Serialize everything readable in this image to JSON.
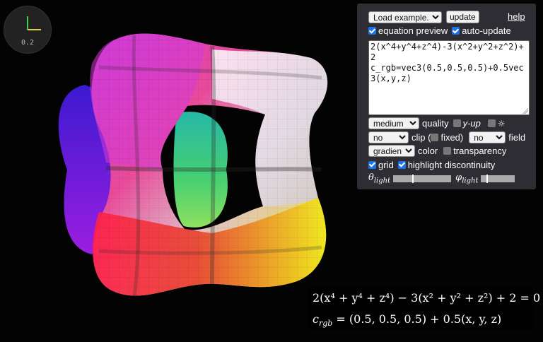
{
  "viewer": {
    "axis_scale": "0.2"
  },
  "panel": {
    "example_select": "Load example...",
    "update_button": "update",
    "help_link": "help",
    "equation_preview_label": "equation preview",
    "equation_preview_checked": true,
    "auto_update_label": "auto-update",
    "auto_update_checked": true,
    "equation_text": "2(x^4+y^4+z^4)-3(x^2+y^2+z^2)+2\nc_rgb=vec3(0.5,0.5,0.5)+0.5vec3(x,y,z)",
    "quality_select": "medium",
    "quality_label": "quality",
    "y_up_label": "y-up",
    "y_up_checked": false,
    "light_checked": false,
    "light_icon": "sun-icon",
    "light_glyph": "☼",
    "clip_select": "no",
    "clip_label": "clip (",
    "fixed_label": "fixed)",
    "fixed_checked": false,
    "field_select": "no",
    "field_label": "field",
    "color_select": "gradient",
    "color_label": "color",
    "transparency_label": "transparency",
    "transparency_checked": false,
    "grid_label": "grid",
    "grid_checked": true,
    "highlight_label": "highlight discontinuity",
    "highlight_checked": true,
    "theta_label": "θ",
    "theta_sub": "light",
    "theta_value": 0.33,
    "phi_label": "φ",
    "phi_sub": "light",
    "phi_value": 0.15
  },
  "formula": {
    "line1": "2(x⁴ + y⁴ + z⁴) − 3(x² + y² + z²) + 2 = 0",
    "line2_prefix": "c",
    "line2_sub": "rgb",
    "line2_rest": " = (0.5, 0.5, 0.5) + 0.5(x, y, z)"
  },
  "colors": {
    "panel_bg": "#2d2d33",
    "accent_checkbox": "#1a73e8",
    "background": "#030303"
  }
}
